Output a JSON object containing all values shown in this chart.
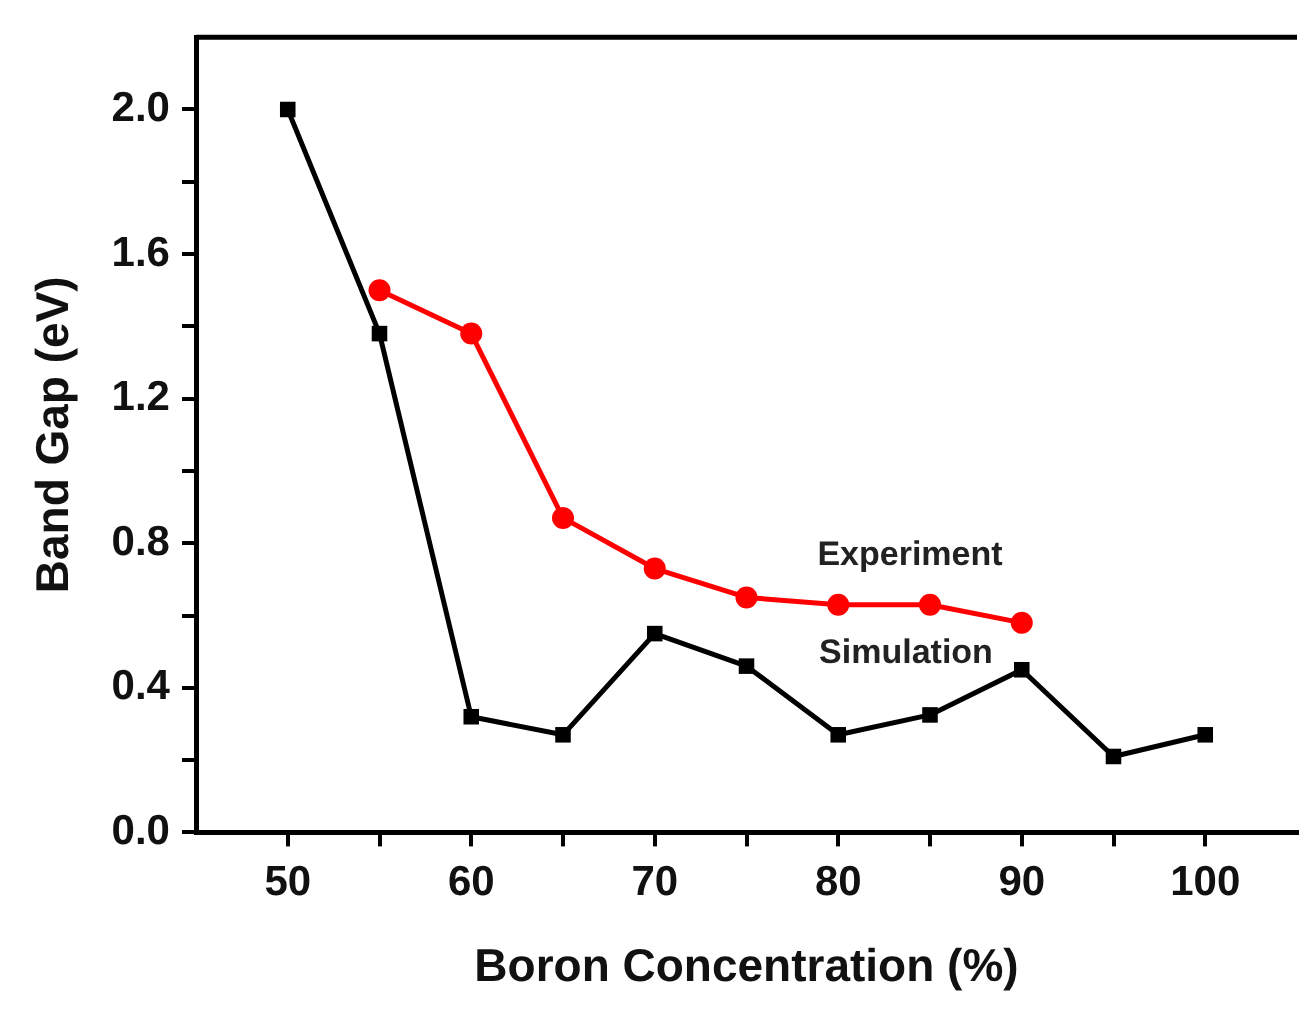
{
  "chart_data": {
    "type": "line",
    "xlabel": "Boron Concentration (%)",
    "ylabel": "Band Gap (eV)",
    "xlim": [
      45,
      105
    ],
    "xticks": [
      50,
      {
        "value": 55,
        "label": null
      },
      60,
      {
        "value": 65,
        "label": null
      },
      70,
      {
        "value": 75,
        "label": null
      },
      80,
      {
        "value": 85,
        "label": null
      },
      90,
      {
        "value": 95,
        "label": null
      },
      100
    ],
    "ylim": [
      0,
      2.2
    ],
    "yticks": [
      {
        "value": 0,
        "label": "0.0"
      },
      {
        "value": 0.2,
        "label": null
      },
      0.4,
      {
        "value": 0.6,
        "label": null
      },
      0.8,
      {
        "value": 1.0,
        "label": null
      },
      1.2,
      {
        "value": 1.4,
        "label": null
      },
      1.6,
      {
        "value": 1.8,
        "label": null
      },
      {
        "value": 2,
        "label": "2.0"
      }
    ],
    "grid": false,
    "legend": false,
    "tick_labels": "xy",
    "series": [
      {
        "color": "#ff0000",
        "marker": "circle",
        "x": [
          55,
          60,
          65,
          70,
          75,
          80,
          85,
          90
        ],
        "values": [
          1.5,
          1.38,
          0.87,
          0.73,
          0.65,
          0.63,
          0.63,
          0.58
        ]
      },
      {
        "color": "#000000",
        "marker": "square",
        "x": [
          50,
          55,
          60,
          65,
          70,
          75,
          80,
          85,
          90,
          95,
          100
        ],
        "values": [
          2.0,
          1.38,
          0.32,
          0.27,
          0.55,
          0.46,
          0.27,
          0.325,
          0.45,
          0.21,
          0.27
        ]
      }
    ],
    "annotations": [
      "Experiment",
      "Simulation"
    ]
  }
}
